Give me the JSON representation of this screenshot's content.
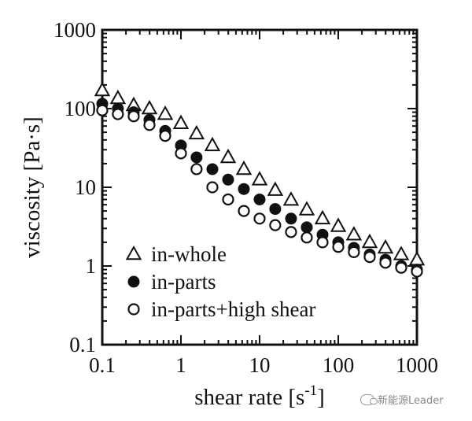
{
  "chart_data": {
    "type": "scatter",
    "xlabel": "shear rate [s",
    "xlabel_sup": "-1",
    "xlabel_end": "]",
    "ylabel": "viscosity [Pa·s]",
    "xscale": "log",
    "yscale": "log",
    "xlim": [
      0.1,
      1000
    ],
    "ylim": [
      0.1,
      1000
    ],
    "x_ticks": [
      0.1,
      1,
      10,
      100,
      1000
    ],
    "x_tick_labels": [
      "0.1",
      "1",
      "10",
      "100",
      "1000"
    ],
    "y_ticks": [
      0.1,
      1,
      10,
      100,
      1000
    ],
    "y_tick_labels": [
      "0.1",
      "1",
      "10",
      "100",
      "1000"
    ],
    "grid": false,
    "legend_position": "bottom-left",
    "x": [
      0.1,
      0.158,
      0.251,
      0.398,
      0.631,
      1,
      1.58,
      2.51,
      3.98,
      6.31,
      10,
      15.8,
      25.1,
      39.8,
      63.1,
      100,
      158,
      251,
      398,
      631,
      1000
    ],
    "series": [
      {
        "name": "in-whole",
        "marker": "open-triangle",
        "values": [
          170,
          135,
          110,
          100,
          85,
          65,
          48,
          34,
          24,
          17,
          12.5,
          9.2,
          6.9,
          5.2,
          4.0,
          3.2,
          2.5,
          2.0,
          1.7,
          1.4,
          1.2
        ]
      },
      {
        "name": "in-parts",
        "marker": "filled-circle",
        "values": [
          115,
          100,
          90,
          72,
          52,
          34,
          24,
          17,
          12.5,
          9.5,
          7.0,
          5.3,
          4.0,
          3.1,
          2.5,
          2.0,
          1.7,
          1.4,
          1.2,
          1.0,
          0.9
        ]
      },
      {
        "name": "in-parts+high shear",
        "marker": "open-circle",
        "values": [
          95,
          85,
          80,
          62,
          45,
          27,
          17,
          10,
          7.0,
          5.0,
          4.0,
          3.3,
          2.7,
          2.3,
          2.0,
          1.75,
          1.5,
          1.3,
          1.1,
          0.95,
          0.85
        ]
      }
    ]
  },
  "watermark": {
    "text": "新能源Leader",
    "icon": "wechat-icon"
  }
}
